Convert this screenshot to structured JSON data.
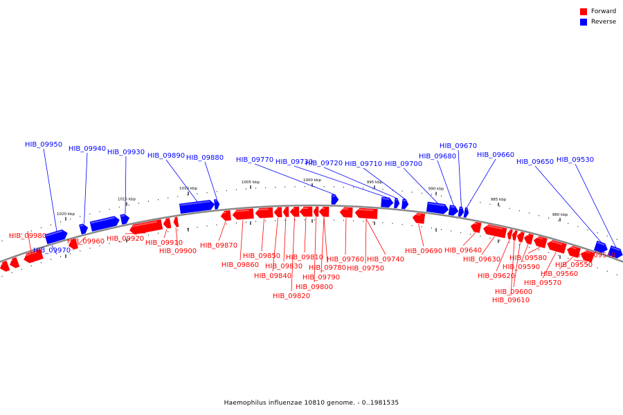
{
  "title": "Haemophilus influenzae 10810 genome. - 0..1981535",
  "legend": {
    "forward_label": "Forward",
    "reverse_label": "Reverse",
    "forward_color": "#ff0000",
    "reverse_color": "#0000ff"
  },
  "ruler_labels": [
    "1020 kbp",
    "1015 kbp",
    "1010 kbp",
    "1005 kbp",
    "1000 kbp",
    "995 kbp",
    "990 kbp",
    "985 kbp",
    "980 kbp"
  ],
  "genes": {
    "reverse": [
      "HIB_09950",
      "HIB_09970",
      "HIB_09940",
      "HIB_09930",
      "HIB_09890",
      "HIB_09880",
      "HIB_09770",
      "HIB_09730",
      "HIB_09720",
      "HIB_09710",
      "HIB_09700",
      "HIB_09680",
      "HIB_09670",
      "HIB_09660",
      "HIB_09650",
      "HIB_09530"
    ],
    "forward": [
      "HIB_09980",
      "HIB_09960",
      "HIB_09920",
      "HIB_09910",
      "HIB_09900",
      "HIB_09870",
      "HIB_09860",
      "HIB_09850",
      "HIB_09840",
      "HIB_09830",
      "HIB_09820",
      "HIB_09810",
      "HIB_09800",
      "HIB_09790",
      "HIB_09780",
      "HIB_09760",
      "HIB_09750",
      "HIB_09740",
      "HIB_09690",
      "HIB_09640",
      "HIB_09630",
      "HIB_09620",
      "HIB_09610",
      "HIB_09600",
      "HIB_09590",
      "HIB_09580",
      "HIB_09570",
      "HIB_09560",
      "HIB_09550",
      "HIB_09540"
    ]
  }
}
